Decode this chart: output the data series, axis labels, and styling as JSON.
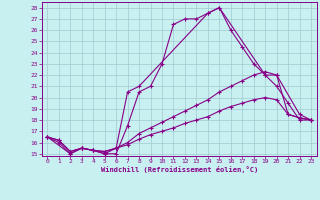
{
  "xlabel": "Windchill (Refroidissement éolien,°C)",
  "xlim": [
    -0.5,
    23.5
  ],
  "ylim": [
    14.8,
    28.5
  ],
  "yticks": [
    15,
    16,
    17,
    18,
    19,
    20,
    21,
    22,
    23,
    24,
    25,
    26,
    27,
    28
  ],
  "xticks": [
    0,
    1,
    2,
    3,
    4,
    5,
    6,
    7,
    8,
    9,
    10,
    11,
    12,
    13,
    14,
    15,
    16,
    17,
    18,
    19,
    20,
    21,
    22,
    23
  ],
  "bg_color": "#c8f0f0",
  "grid_color": "#a0c8d0",
  "line_color": "#880088",
  "line1_x": [
    0,
    1,
    2,
    3,
    4,
    5,
    6,
    7,
    8,
    9,
    10,
    11,
    12,
    13,
    14,
    15,
    16,
    17,
    18,
    19,
    20,
    21,
    22,
    23
  ],
  "line1_y": [
    16.5,
    16.0,
    15.0,
    15.5,
    15.3,
    15.0,
    15.0,
    17.5,
    20.5,
    21.0,
    23.0,
    26.5,
    27.0,
    27.0,
    27.5,
    28.0,
    26.0,
    24.5,
    23.0,
    22.0,
    21.0,
    19.5,
    18.0,
    18.0
  ],
  "line2_x": [
    0,
    2,
    3,
    4,
    5,
    6,
    7,
    8,
    14,
    15,
    19,
    20,
    22,
    23
  ],
  "line2_y": [
    16.5,
    15.0,
    15.5,
    15.3,
    15.0,
    15.5,
    20.5,
    21.0,
    27.5,
    28.0,
    22.0,
    22.0,
    18.5,
    18.0
  ],
  "line3_x": [
    0,
    1,
    2,
    3,
    4,
    5,
    6,
    7,
    8,
    9,
    10,
    11,
    12,
    13,
    14,
    15,
    16,
    17,
    18,
    19,
    20,
    21,
    22,
    23
  ],
  "line3_y": [
    16.5,
    16.2,
    15.2,
    15.5,
    15.3,
    15.2,
    15.5,
    16.0,
    16.8,
    17.3,
    17.8,
    18.3,
    18.8,
    19.3,
    19.8,
    20.5,
    21.0,
    21.5,
    22.0,
    22.3,
    22.0,
    18.5,
    18.2,
    18.0
  ],
  "line4_x": [
    0,
    1,
    2,
    3,
    4,
    5,
    6,
    7,
    8,
    9,
    10,
    11,
    12,
    13,
    14,
    15,
    16,
    17,
    18,
    19,
    20,
    21,
    22,
    23
  ],
  "line4_y": [
    16.5,
    16.2,
    15.2,
    15.5,
    15.3,
    15.2,
    15.5,
    15.8,
    16.3,
    16.7,
    17.0,
    17.3,
    17.7,
    18.0,
    18.3,
    18.8,
    19.2,
    19.5,
    19.8,
    20.0,
    19.8,
    18.5,
    18.2,
    18.0
  ]
}
